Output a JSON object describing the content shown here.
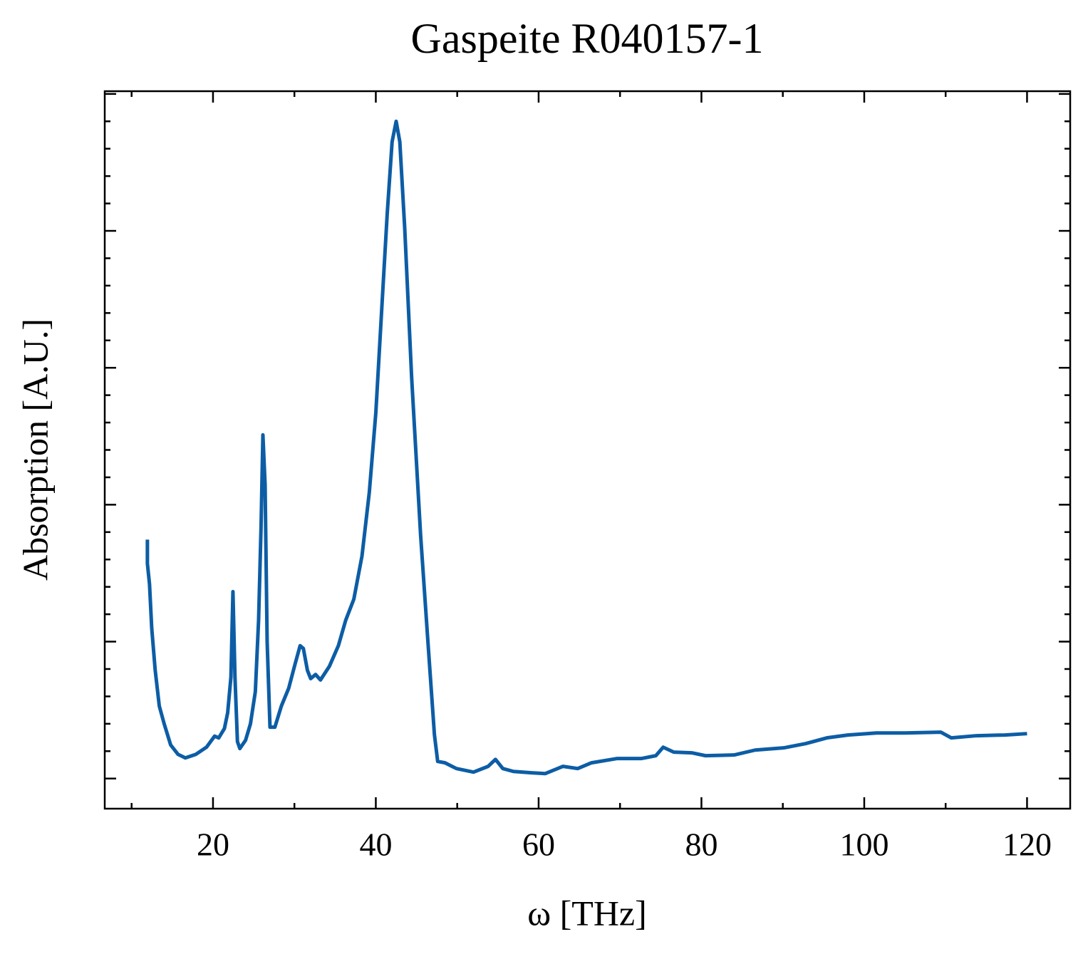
{
  "chart_data": {
    "type": "line",
    "title": "Gaspeite R040157-1",
    "x_label": "ω [THz]",
    "y_label": "Absorption [A.U.]",
    "xlim": [
      6.7,
      125.3
    ],
    "ylim": [
      -0.22,
      5.02
    ],
    "xticks": [
      20,
      40,
      60,
      80,
      100,
      120
    ],
    "xminorticks": [
      10,
      30,
      50,
      70,
      90,
      110
    ],
    "yticks": [
      0,
      1,
      2,
      3,
      4,
      5
    ],
    "yminorticks": [
      0.2,
      0.4,
      0.6,
      0.8,
      1.2,
      1.4,
      1.6,
      1.8,
      2.2,
      2.4,
      2.6,
      2.8,
      3.2,
      3.4,
      3.6,
      3.8,
      4.2,
      4.4,
      4.6,
      4.8
    ],
    "series": [
      {
        "color": "#0c5da5",
        "x": [
          11.94,
          11.94,
          12.2,
          12.47,
          12.9,
          13.4,
          14.0,
          14.8,
          15.7,
          16.6,
          17.9,
          19.2,
          20.2,
          20.7,
          21.4,
          21.8,
          22.2,
          22.45,
          22.7,
          23.0,
          23.3,
          24.0,
          24.6,
          25.2,
          25.6,
          25.9,
          26.13,
          26.4,
          26.65,
          27.0,
          27.6,
          28.4,
          29.3,
          30.1,
          30.7,
          31.1,
          31.6,
          32.0,
          32.6,
          33.2,
          34.3,
          35.4,
          36.3,
          37.3,
          38.3,
          39.2,
          40.0,
          40.7,
          41.4,
          42.0,
          42.5,
          42.95,
          43.55,
          44.4,
          45.5,
          46.4,
          47.2,
          47.6,
          48.5,
          49.9,
          52.0,
          53.8,
          54.7,
          55.6,
          56.9,
          59.1,
          60.8,
          63.0,
          64.8,
          66.5,
          69.6,
          72.6,
          74.4,
          75.3,
          76.6,
          78.8,
          80.5,
          84.0,
          86.6,
          90.1,
          92.8,
          95.4,
          98.0,
          101.5,
          105.0,
          109.4,
          110.7,
          113.8,
          117.3,
          120.0
        ],
        "values": [
          1.745,
          1.57,
          1.42,
          1.1,
          0.79,
          0.53,
          0.4,
          0.245,
          0.177,
          0.151,
          0.177,
          0.229,
          0.31,
          0.297,
          0.365,
          0.48,
          0.74,
          1.365,
          0.74,
          0.27,
          0.219,
          0.28,
          0.4,
          0.635,
          1.156,
          1.833,
          2.51,
          2.146,
          1.0,
          0.375,
          0.375,
          0.53,
          0.66,
          0.84,
          0.97,
          0.95,
          0.79,
          0.73,
          0.76,
          0.72,
          0.82,
          0.97,
          1.156,
          1.31,
          1.625,
          2.09,
          2.67,
          3.4,
          4.125,
          4.65,
          4.8,
          4.65,
          4.02,
          2.93,
          1.78,
          1.0,
          0.32,
          0.125,
          0.115,
          0.073,
          0.047,
          0.089,
          0.14,
          0.073,
          0.052,
          0.042,
          0.036,
          0.089,
          0.073,
          0.115,
          0.146,
          0.146,
          0.167,
          0.229,
          0.193,
          0.188,
          0.167,
          0.172,
          0.208,
          0.224,
          0.255,
          0.297,
          0.318,
          0.333,
          0.333,
          0.339,
          0.297,
          0.313,
          0.318,
          0.328
        ]
      }
    ]
  }
}
